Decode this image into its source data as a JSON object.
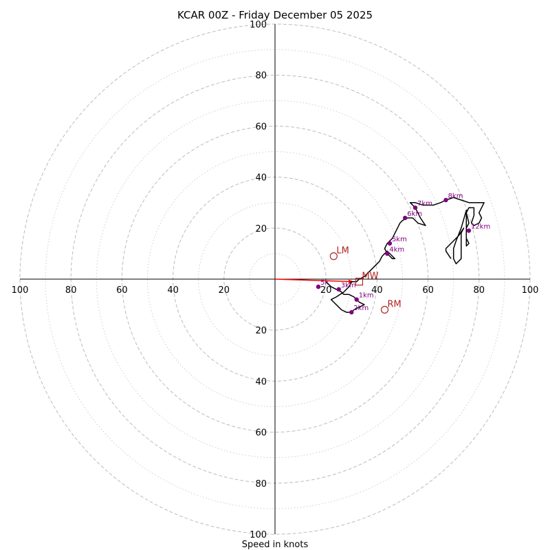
{
  "chart_data": {
    "type": "scatter",
    "subtype": "hodograph",
    "title": "KCAR 00Z - Friday December 05 2025",
    "xlabel": "Speed in knots",
    "rlim": [
      0,
      100
    ],
    "ring_labels": [
      "20",
      "40",
      "60",
      "80",
      "100"
    ],
    "ring_values": [
      20,
      40,
      60,
      80,
      100
    ],
    "minor_rings": [
      10,
      30,
      50,
      70,
      90
    ],
    "grid": true,
    "colors": {
      "trace": "#000000",
      "height_marker": "#800080",
      "motion": "#b22222",
      "shear_vector": "#ff0000",
      "grid": "#bbbbbb"
    },
    "trace": [
      [
        20,
        -1
      ],
      [
        22,
        -3
      ],
      [
        24,
        -4
      ],
      [
        26,
        -5
      ],
      [
        27,
        -6
      ],
      [
        29,
        -6
      ],
      [
        31,
        -7
      ],
      [
        32,
        -8
      ],
      [
        33,
        -9
      ],
      [
        35,
        -10
      ],
      [
        33,
        -11
      ],
      [
        31,
        -12
      ],
      [
        30,
        -13
      ],
      [
        29,
        -13
      ],
      [
        28,
        -13
      ],
      [
        26,
        -12
      ],
      [
        25,
        -11
      ],
      [
        23,
        -9
      ],
      [
        22,
        -8
      ],
      [
        24,
        -7
      ],
      [
        27,
        -5
      ],
      [
        28,
        -4
      ],
      [
        29,
        -3
      ],
      [
        30,
        -1
      ],
      [
        32,
        -1
      ],
      [
        33,
        0
      ],
      [
        35,
        1
      ],
      [
        38,
        4
      ],
      [
        40,
        6
      ],
      [
        41,
        7
      ],
      [
        42,
        9
      ],
      [
        44,
        11
      ],
      [
        45,
        10
      ],
      [
        46,
        9
      ],
      [
        47,
        8
      ],
      [
        46,
        8
      ],
      [
        45,
        9
      ],
      [
        44,
        10
      ],
      [
        43,
        12
      ],
      [
        44,
        14
      ],
      [
        45,
        15
      ],
      [
        46,
        16
      ],
      [
        47,
        18
      ],
      [
        48,
        20
      ],
      [
        49,
        22
      ],
      [
        50,
        23
      ],
      [
        52,
        24
      ],
      [
        53,
        24
      ],
      [
        54,
        24
      ],
      [
        56,
        22
      ],
      [
        59,
        21
      ],
      [
        57,
        24
      ],
      [
        55,
        28
      ],
      [
        53,
        30
      ],
      [
        55,
        30
      ],
      [
        58,
        29
      ],
      [
        62,
        29
      ],
      [
        65,
        30
      ],
      [
        67,
        31
      ],
      [
        70,
        32
      ],
      [
        73,
        31
      ],
      [
        76,
        30
      ],
      [
        79,
        30
      ],
      [
        82,
        30
      ],
      [
        81,
        28
      ],
      [
        80,
        26
      ],
      [
        81,
        24
      ],
      [
        80,
        22
      ],
      [
        78,
        21
      ],
      [
        77,
        22
      ],
      [
        78,
        25
      ],
      [
        78,
        28
      ],
      [
        76,
        28
      ],
      [
        75,
        26
      ],
      [
        76,
        22
      ],
      [
        75,
        20
      ],
      [
        75,
        16
      ],
      [
        76,
        14
      ],
      [
        75,
        13
      ],
      [
        75,
        17
      ],
      [
        75,
        22
      ],
      [
        75,
        27
      ],
      [
        73,
        20
      ],
      [
        71,
        15
      ],
      [
        70,
        12
      ],
      [
        70,
        8
      ],
      [
        71,
        6
      ],
      [
        73,
        8
      ],
      [
        73,
        12
      ],
      [
        73,
        18
      ],
      [
        74,
        20
      ],
      [
        72,
        17
      ],
      [
        67,
        12
      ],
      [
        67,
        11
      ],
      [
        69,
        8
      ]
    ],
    "height_markers": [
      {
        "label": "5k",
        "x": 17,
        "y": -3
      },
      {
        "label": "3km",
        "x": 25,
        "y": -4
      },
      {
        "label": "1km",
        "x": 32,
        "y": -8
      },
      {
        "label": "2km",
        "x": 30,
        "y": -13
      },
      {
        "label": "4km",
        "x": 44,
        "y": 10
      },
      {
        "label": "5km",
        "x": 45,
        "y": 14
      },
      {
        "label": "6km",
        "x": 51,
        "y": 24
      },
      {
        "label": "7km",
        "x": 55,
        "y": 28
      },
      {
        "label": "8km",
        "x": 67,
        "y": 31
      },
      {
        "label": "12km",
        "x": 76,
        "y": 19
      }
    ],
    "storm_motion": [
      {
        "label": "LM",
        "x": 23,
        "y": 9,
        "marker": "circle"
      },
      {
        "label": "RM",
        "x": 43,
        "y": -12,
        "marker": "circle"
      },
      {
        "label": "MW",
        "x": 33,
        "y": -1,
        "marker": "square"
      }
    ],
    "shear_vector": {
      "x0": 0,
      "y0": 0,
      "x1": 31,
      "y1": -1
    }
  }
}
